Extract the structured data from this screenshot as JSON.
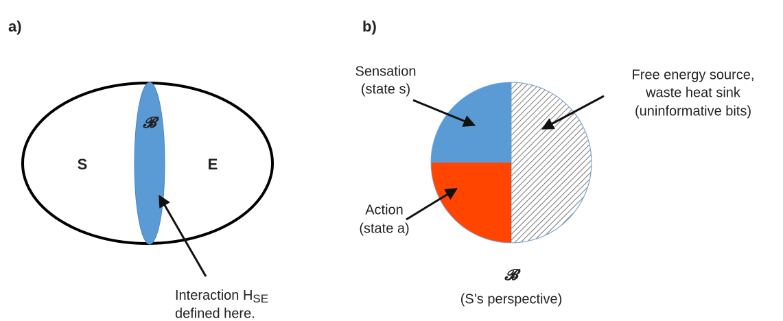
{
  "panel_a": {
    "label": "a)",
    "left": "S",
    "right": "E",
    "boundary": "𝓑",
    "note": {
      "line1": "Interaction H",
      "subscript": "SE",
      "line2": "defined here."
    }
  },
  "panel_b": {
    "label": "b)",
    "sensation": {
      "line1": "Sensation",
      "line2": "(state s)"
    },
    "action": {
      "line1": "Action",
      "line2": "(state a)"
    },
    "free_energy": {
      "line1": "Free energy source,",
      "line2": "waste heat sink",
      "line3": "(uninformative bits)"
    },
    "caption": {
      "symbol": "𝓑",
      "text": "(S’s perspective)"
    }
  }
}
